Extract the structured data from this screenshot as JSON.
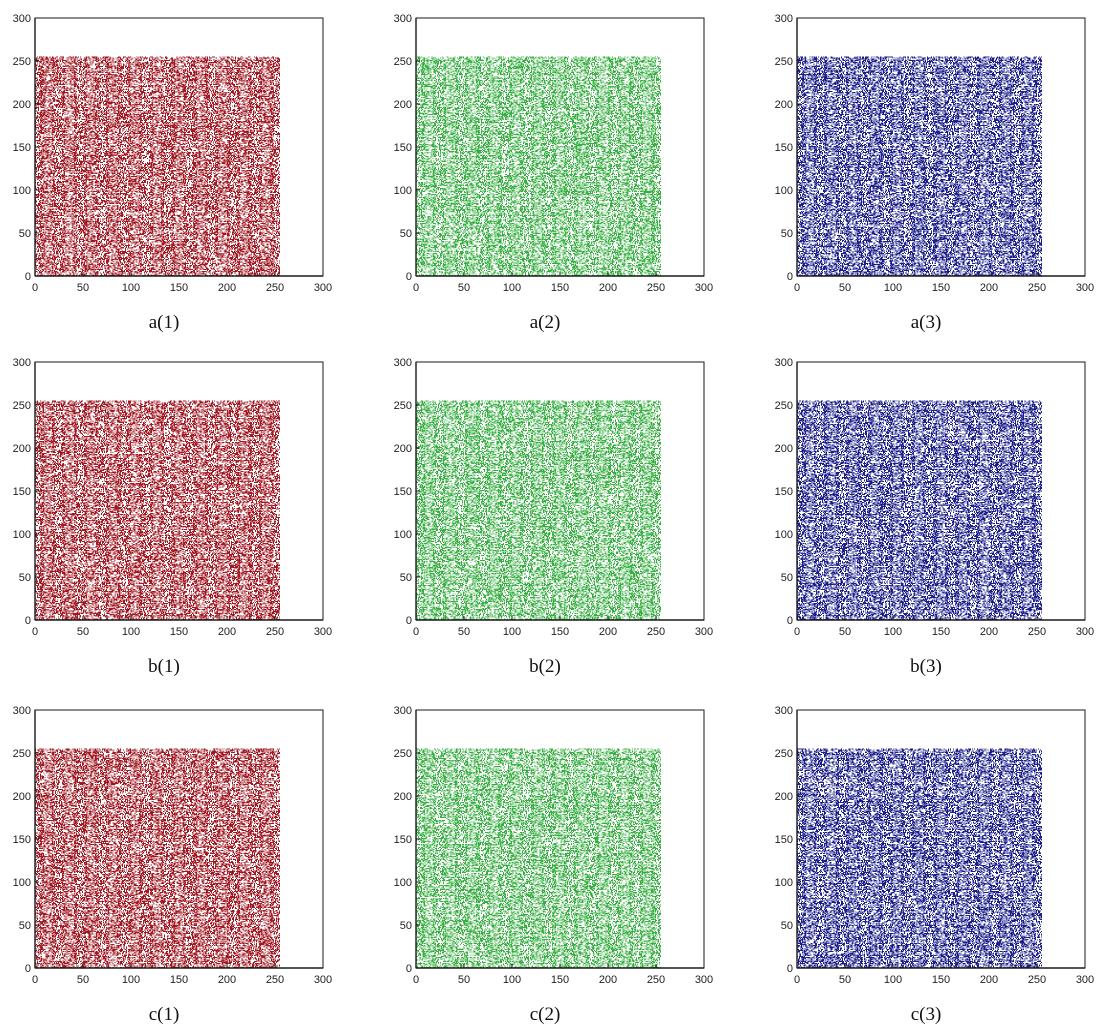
{
  "figure": {
    "rows": 3,
    "columns": 3
  },
  "chart_data": [
    {
      "type": "scatter",
      "caption": "a(1)",
      "color": "#a01822",
      "xlim": [
        0,
        300
      ],
      "ylim": [
        0,
        300
      ],
      "xticks": [
        0,
        50,
        100,
        150,
        200,
        250,
        300
      ],
      "yticks": [
        0,
        50,
        100,
        150,
        200,
        250,
        300
      ],
      "point_domain": {
        "x": [
          0,
          255
        ],
        "y": [
          0,
          255
        ]
      },
      "density": 0.45,
      "grid": false
    },
    {
      "type": "scatter",
      "caption": "a(2)",
      "color": "#35b040",
      "xlim": [
        0,
        300
      ],
      "ylim": [
        0,
        300
      ],
      "xticks": [
        0,
        50,
        100,
        150,
        200,
        250,
        300
      ],
      "yticks": [
        0,
        50,
        100,
        150,
        200,
        250,
        300
      ],
      "point_domain": {
        "x": [
          0,
          255
        ],
        "y": [
          0,
          255
        ]
      },
      "density": 0.4,
      "grid": false
    },
    {
      "type": "scatter",
      "caption": "a(3)",
      "color": "#1c1f8a",
      "xlim": [
        0,
        300
      ],
      "ylim": [
        0,
        300
      ],
      "xticks": [
        0,
        50,
        100,
        150,
        200,
        250,
        300
      ],
      "yticks": [
        0,
        50,
        100,
        150,
        200,
        250,
        300
      ],
      "point_domain": {
        "x": [
          0,
          255
        ],
        "y": [
          0,
          255
        ]
      },
      "density": 0.45,
      "grid": false
    },
    {
      "type": "scatter",
      "caption": "b(1)",
      "color": "#a01822",
      "xlim": [
        0,
        300
      ],
      "ylim": [
        0,
        300
      ],
      "xticks": [
        0,
        50,
        100,
        150,
        200,
        250,
        300
      ],
      "yticks": [
        0,
        50,
        100,
        150,
        200,
        250,
        300
      ],
      "point_domain": {
        "x": [
          0,
          255
        ],
        "y": [
          0,
          255
        ]
      },
      "density": 0.45,
      "grid": false
    },
    {
      "type": "scatter",
      "caption": "b(2)",
      "color": "#35b040",
      "xlim": [
        0,
        300
      ],
      "ylim": [
        0,
        300
      ],
      "xticks": [
        0,
        50,
        100,
        150,
        200,
        250,
        300
      ],
      "yticks": [
        0,
        50,
        100,
        150,
        200,
        250,
        300
      ],
      "point_domain": {
        "x": [
          0,
          255
        ],
        "y": [
          0,
          255
        ]
      },
      "density": 0.4,
      "grid": false
    },
    {
      "type": "scatter",
      "caption": "b(3)",
      "color": "#1c1f8a",
      "xlim": [
        0,
        300
      ],
      "ylim": [
        0,
        300
      ],
      "xticks": [
        0,
        50,
        100,
        150,
        200,
        250,
        300
      ],
      "yticks": [
        0,
        50,
        100,
        150,
        200,
        250,
        300
      ],
      "point_domain": {
        "x": [
          0,
          255
        ],
        "y": [
          0,
          255
        ]
      },
      "density": 0.45,
      "grid": false
    },
    {
      "type": "scatter",
      "caption": "c(1)",
      "color": "#a01822",
      "xlim": [
        0,
        300
      ],
      "ylim": [
        0,
        300
      ],
      "xticks": [
        0,
        50,
        100,
        150,
        200,
        250,
        300
      ],
      "yticks": [
        0,
        50,
        100,
        150,
        200,
        250,
        300
      ],
      "point_domain": {
        "x": [
          0,
          255
        ],
        "y": [
          0,
          255
        ]
      },
      "density": 0.45,
      "grid": false
    },
    {
      "type": "scatter",
      "caption": "c(2)",
      "color": "#35b040",
      "xlim": [
        0,
        300
      ],
      "ylim": [
        0,
        300
      ],
      "xticks": [
        0,
        50,
        100,
        150,
        200,
        250,
        300
      ],
      "yticks": [
        0,
        50,
        100,
        150,
        200,
        250,
        300
      ],
      "point_domain": {
        "x": [
          0,
          255
        ],
        "y": [
          0,
          255
        ]
      },
      "density": 0.4,
      "grid": false
    },
    {
      "type": "scatter",
      "caption": "c(3)",
      "color": "#1c1f8a",
      "xlim": [
        0,
        300
      ],
      "ylim": [
        0,
        300
      ],
      "xticks": [
        0,
        50,
        100,
        150,
        200,
        250,
        300
      ],
      "yticks": [
        0,
        50,
        100,
        150,
        200,
        250,
        300
      ],
      "point_domain": {
        "x": [
          0,
          255
        ],
        "y": [
          0,
          255
        ]
      },
      "density": 0.45,
      "grid": false
    }
  ]
}
